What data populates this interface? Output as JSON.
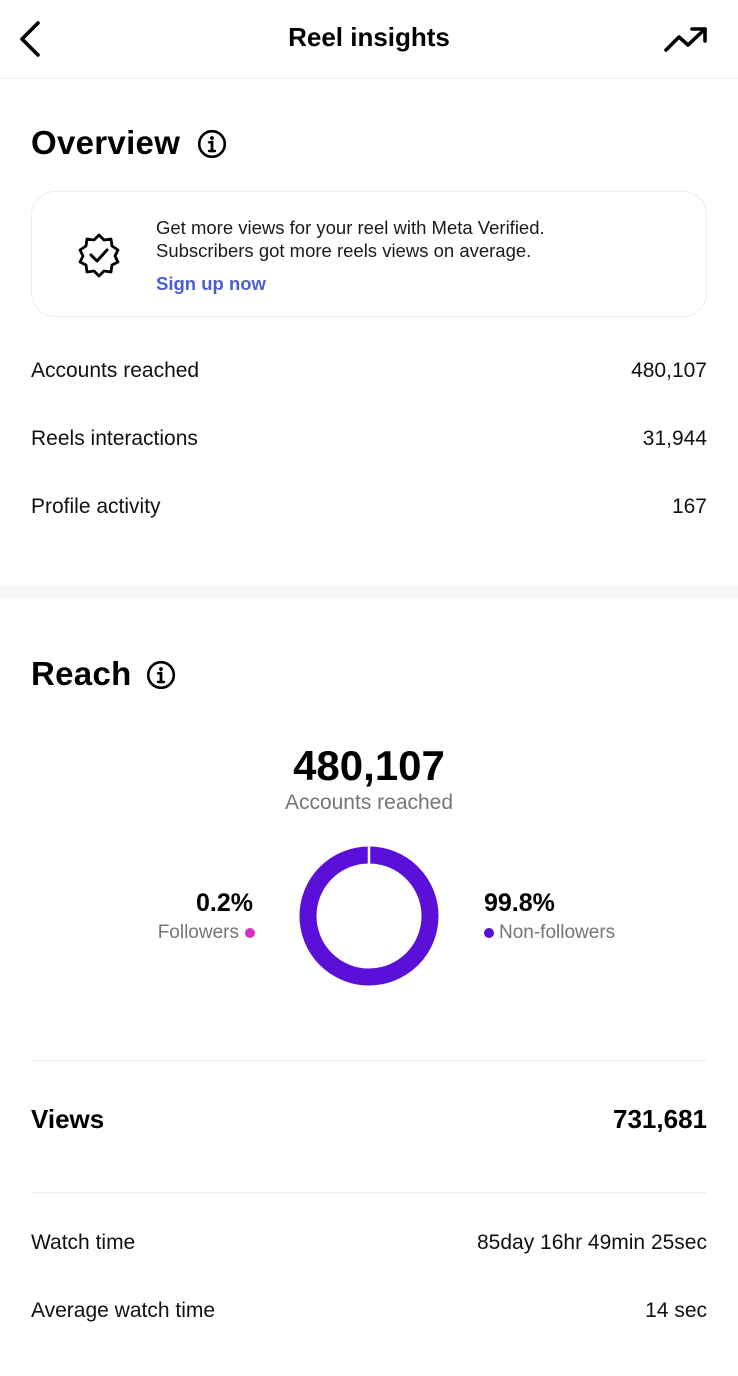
{
  "header": {
    "title": "Reel insights",
    "back_icon": "chevron-left-icon",
    "trend_icon": "trending-up-icon"
  },
  "overview": {
    "title": "Overview",
    "promo": {
      "icon": "verified-badge-icon",
      "line1": "Get more views for your reel with Meta Verified.",
      "line2": "Subscribers got more reels views on average.",
      "link": "Sign up now",
      "link_color": "#4a5fd1"
    },
    "rows": [
      {
        "label": "Accounts reached",
        "value": "480,107"
      },
      {
        "label": "Reels interactions",
        "value": "31,944"
      },
      {
        "label": "Profile activity",
        "value": "167"
      }
    ]
  },
  "reach": {
    "title": "Reach",
    "total": "480,107",
    "caption": "Accounts reached",
    "followers": {
      "pct": "0.2%",
      "label": "Followers",
      "fraction": 0.002,
      "color": "#d42fc4"
    },
    "non_followers": {
      "pct": "99.8%",
      "label": "Non-followers",
      "fraction": 0.998,
      "color": "#5a10d8"
    }
  },
  "views": {
    "label": "Views",
    "value": "731,681"
  },
  "watch": [
    {
      "label": "Watch time",
      "value": "85day 16hr 49min 25sec"
    },
    {
      "label": "Average watch time",
      "value": "14 sec"
    }
  ]
}
